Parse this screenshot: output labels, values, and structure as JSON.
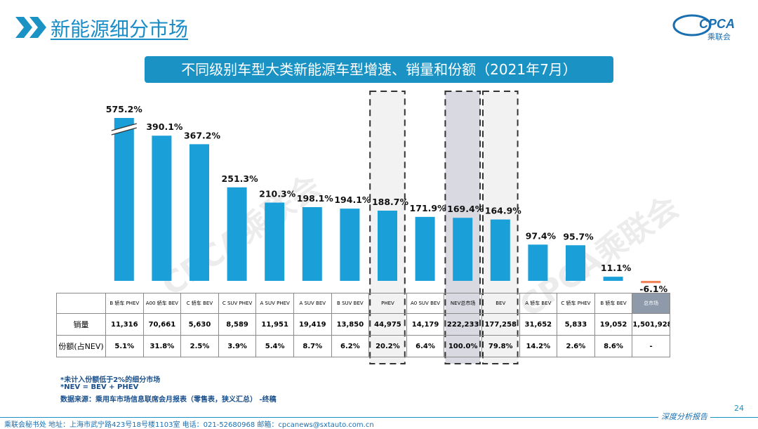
{
  "header": {
    "title": "新能源细分市场",
    "logo_text": "CPCA",
    "logo_sub": "乘联会"
  },
  "banner": {
    "text": "不同级别车型大类新能源车型增速、销量和份额（2021年7月）"
  },
  "chart_data": {
    "type": "bar",
    "title": "不同级别车型大类新能源车型增速、销量和份额（2021年7月）",
    "categories": [
      "B 轿车 PHEV",
      "A00 轿车 BEV",
      "C 轿车 BEV",
      "C SUV PHEV",
      "A SUV PHEV",
      "A SUV BEV",
      "B SUV BEV",
      "PHEV",
      "A0 SUV BEV",
      "NEV总市场",
      "BEV",
      "A 轿车 BEV",
      "C 轿车 PHEV",
      "B 轿车 BEV",
      "总市场"
    ],
    "values": [
      575.2,
      390.1,
      367.2,
      251.3,
      210.3,
      198.1,
      194.1,
      188.7,
      171.9,
      169.4,
      164.9,
      97.4,
      95.7,
      11.1,
      -6.1
    ],
    "data_labels": [
      "575.2%",
      "390.1%",
      "367.2%",
      "251.3%",
      "210.3%",
      "198.1%",
      "194.1%",
      "188.7%",
      "171.9%",
      "169.4%",
      "164.9%",
      "97.4%",
      "95.7%",
      "11.1%",
      "-6.1%"
    ],
    "unit": "%",
    "axis_break_index": 0,
    "colors": {
      "positive": "#1a9fd8",
      "negative": "#f0845a",
      "highlight_fill": "#f2f2f2",
      "highlight_fill_dark": "#d9d9e2"
    },
    "highlighted_categories": [
      "PHEV",
      "NEV总市场",
      "BEV"
    ]
  },
  "table": {
    "rows": [
      {
        "label": "销量",
        "values": [
          "11,316",
          "70,661",
          "5,630",
          "8,589",
          "11,951",
          "19,419",
          "13,850",
          "44,975",
          "14,179",
          "222,233",
          "177,258",
          "31,652",
          "5,833",
          "19,052",
          "1,501,928"
        ]
      },
      {
        "label": "份额(占NEV)",
        "values": [
          "5.1%",
          "31.8%",
          "2.5%",
          "3.9%",
          "5.4%",
          "8.7%",
          "6.2%",
          "20.2%",
          "6.4%",
          "100.0%",
          "79.8%",
          "14.2%",
          "2.6%",
          "8.6%",
          "-"
        ]
      }
    ]
  },
  "footnotes": [
    "*未计入份额低于2%的细分市场",
    "*NEV = BEV + PHEV",
    "数据来源：乘用车市场信息联席会月报表（零售表，狭义汇总）   -终稿"
  ],
  "footer": {
    "contact": "乘联会秘书处   地址：上海市武宁路423号18号楼1103室   电话：021-52680968    邮箱：cpcanews@sxtauto.com.cn",
    "report_tag": "深度分析报告",
    "page_number": "24"
  },
  "watermark": "CPCA乘联会"
}
